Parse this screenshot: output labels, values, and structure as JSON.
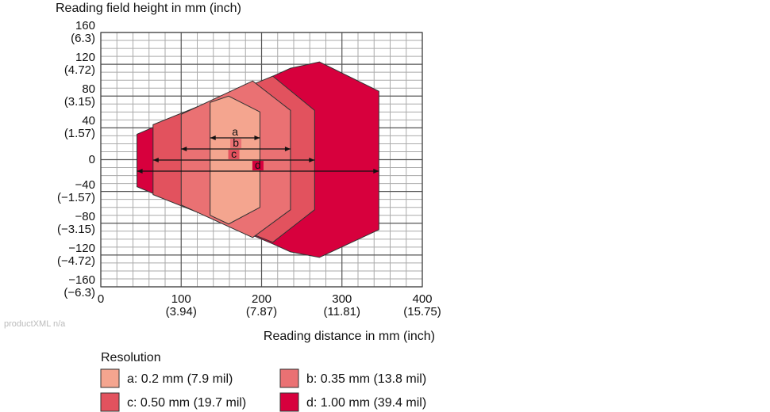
{
  "chart_data": {
    "type": "polygon",
    "y_axis_label": "Reading field height in mm (inch)",
    "x_axis_label": "Reading distance in mm (inch)",
    "legend_title": "Resolution",
    "watermark": "productXML n/a",
    "xlim": [
      0,
      400
    ],
    "ylim": [
      -160,
      160
    ],
    "xticks": [
      0,
      {
        "value": 100,
        "label": "100\n(3.94)"
      },
      {
        "value": 200,
        "label": "200\n(7.87)"
      },
      {
        "value": 300,
        "label": "300\n(11.81)"
      },
      {
        "value": 400,
        "label": "400\n(15.75)"
      }
    ],
    "yticks": [
      {
        "value": 160,
        "label": "160\n(6.3)"
      },
      {
        "value": 120,
        "label": "120\n(4.72)"
      },
      {
        "value": 80,
        "label": "80\n(3.15)"
      },
      {
        "value": 40,
        "label": "40\n(1.57)"
      },
      0,
      {
        "value": -40,
        "label": "−40\n(−1.57)"
      },
      {
        "value": -80,
        "label": "−80\n(−3.15)"
      },
      {
        "value": -120,
        "label": "−120\n(−4.72)"
      },
      {
        "value": -160,
        "label": "−160\n(−6.3)"
      }
    ],
    "grid": true,
    "series": [
      {
        "name": "d: 1.00 mm (39.4 mil)",
        "label": "d",
        "color": "#d7003d",
        "x": [
          45,
          214,
          236,
          272,
          346,
          346,
          272,
          236,
          214,
          45
        ],
        "y": [
          32,
          105,
          115,
          123,
          86,
          -88,
          -123,
          -116,
          -106,
          -34
        ]
      },
      {
        "name": "c: 0.50 mm (19.7 mil)",
        "label": "c",
        "color": "#e2525e",
        "x": [
          65,
          214,
          266,
          266,
          214,
          65
        ],
        "y": [
          44,
          105,
          62,
          -63,
          -104,
          -44
        ]
      },
      {
        "name": "b: 0.35 mm (13.8 mil)",
        "label": "b",
        "color": "#ea7173",
        "x": [
          100,
          189,
          236,
          236,
          189,
          100
        ],
        "y": [
          57,
          99,
          62,
          -63,
          -98,
          -57
        ]
      },
      {
        "name": "a: 0.2 mm (7.9 mil)",
        "label": "a",
        "color": "#f4a58f",
        "x": [
          136,
          159,
          198,
          198,
          159,
          136
        ],
        "y": [
          72,
          80,
          60,
          -60,
          -81,
          -70
        ]
      }
    ]
  }
}
